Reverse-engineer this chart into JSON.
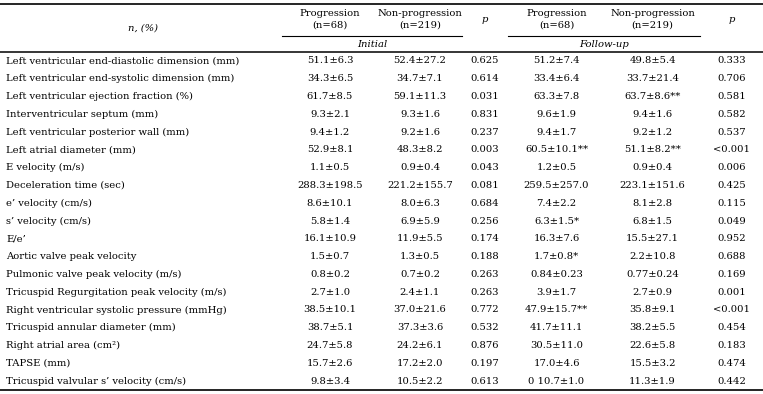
{
  "col_headers_line1": [
    "",
    "Progression",
    "Non-progression",
    "",
    "Progression",
    "Non-progression",
    ""
  ],
  "col_headers_line2": [
    "n, (%)",
    "(n=68)",
    "(n=219)",
    "p",
    "(n=68)",
    "(n=219)",
    "p"
  ],
  "group_labels": [
    "Initial",
    "Follow-up"
  ],
  "rows": [
    [
      "Left ventricular end-diastolic dimension (mm)",
      "51.1±6.3",
      "52.4±27.2",
      "0.625",
      "51.2±7.4",
      "49.8±5.4",
      "0.333"
    ],
    [
      "Left ventricular end-systolic dimension (mm)",
      "34.3±6.5",
      "34.7±7.1",
      "0.614",
      "33.4±6.4",
      "33.7±21.4",
      "0.706"
    ],
    [
      "Left ventricular ejection fraction (%)",
      "61.7±8.5",
      "59.1±11.3",
      "0.031",
      "63.3±7.8",
      "63.7±8.6**",
      "0.581"
    ],
    [
      "Interventricular septum (mm)",
      "9.3±2.1",
      "9.3±1.6",
      "0.831",
      "9.6±1.9",
      "9.4±1.6",
      "0.582"
    ],
    [
      "Left ventricular posterior wall (mm)",
      "9.4±1.2",
      "9.2±1.6",
      "0.237",
      "9.4±1.7",
      "9.2±1.2",
      "0.537"
    ],
    [
      "Left atrial diameter (mm)",
      "52.9±8.1",
      "48.3±8.2",
      "0.003",
      "60.5±10.1**",
      "51.1±8.2**",
      "<0.001"
    ],
    [
      "E velocity (m/s)",
      "1.1±0.5",
      "0.9±0.4",
      "0.043",
      "1.2±0.5",
      "0.9±0.4",
      "0.006"
    ],
    [
      "Deceleration time (sec)",
      "288.3±198.5",
      "221.2±155.7",
      "0.081",
      "259.5±257.0",
      "223.1±151.6",
      "0.425"
    ],
    [
      "e’ velocity (cm/s)",
      "8.6±10.1",
      "8.0±6.3",
      "0.684",
      "7.4±2.2",
      "8.1±2.8",
      "0.115"
    ],
    [
      "s’ velocity (cm/s)",
      "5.8±1.4",
      "6.9±5.9",
      "0.256",
      "6.3±1.5*",
      "6.8±1.5",
      "0.049"
    ],
    [
      "E/e’",
      "16.1±10.9",
      "11.9±5.5",
      "0.174",
      "16.3±7.6",
      "15.5±27.1",
      "0.952"
    ],
    [
      "Aortic valve peak velocity",
      "1.5±0.7",
      "1.3±0.5",
      "0.188",
      "1.7±0.8*",
      "2.2±10.8",
      "0.688"
    ],
    [
      "Pulmonic valve peak velocity (m/s)",
      "0.8±0.2",
      "0.7±0.2",
      "0.263",
      "0.84±0.23",
      "0.77±0.24",
      "0.169"
    ],
    [
      "Tricuspid Regurgitation peak velocity (m/s)",
      "2.7±1.0",
      "2.4±1.1",
      "0.263",
      "3.9±1.7",
      "2.7±0.9",
      "0.001"
    ],
    [
      "Right ventricular systolic pressure (mmHg)",
      "38.5±10.1",
      "37.0±21.6",
      "0.772",
      "47.9±15.7**",
      "35.8±9.1",
      "<0.001"
    ],
    [
      "Tricuspid annular diameter (mm)",
      "38.7±5.1",
      "37.3±3.6",
      "0.532",
      "41.7±11.1",
      "38.2±5.5",
      "0.454"
    ],
    [
      "Right atrial area (cm²)",
      "24.7±5.8",
      "24.2±6.1",
      "0.876",
      "30.5±11.0",
      "22.6±5.8",
      "0.183"
    ],
    [
      "TAPSE (mm)",
      "15.7±2.6",
      "17.2±2.0",
      "0.197",
      "17.0±4.6",
      "15.5±3.2",
      "0.474"
    ],
    [
      "Tricuspid valvular s’ velocity (cm/s)",
      "9.8±3.4",
      "10.5±2.2",
      "0.613",
      "0 10.7±1.0",
      "11.3±1.9",
      "0.442"
    ]
  ],
  "bg_color": "#ffffff",
  "text_color": "#000000",
  "line_color": "#000000",
  "font_size": 7.2,
  "font_family": "DejaVu Serif"
}
